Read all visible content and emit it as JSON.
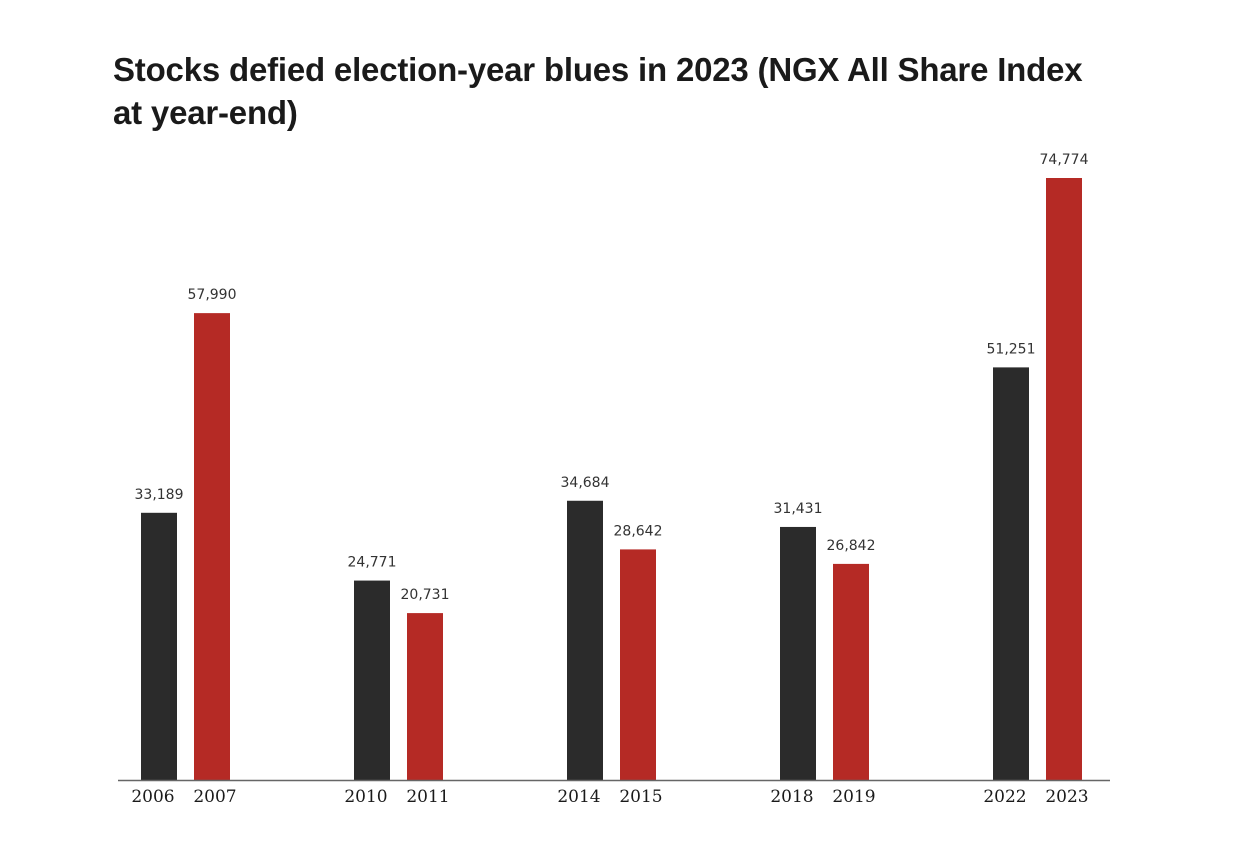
{
  "chart_data": {
    "type": "bar",
    "title": "Stocks defied election-year blues in 2023 (NGX All Share Index at year-end)",
    "xlabel": "",
    "ylabel": "",
    "ylim": [
      0,
      80000
    ],
    "grid": false,
    "legend": "none",
    "groups": [
      {
        "bars": [
          {
            "year": "2006",
            "value": 33189,
            "label": "33,189",
            "kind": "pre"
          },
          {
            "year": "2007",
            "value": 57990,
            "label": "57,990",
            "kind": "election"
          }
        ]
      },
      {
        "bars": [
          {
            "year": "2010",
            "value": 24771,
            "label": "24,771",
            "kind": "pre"
          },
          {
            "year": "2011",
            "value": 20731,
            "label": "20,731",
            "kind": "election"
          }
        ]
      },
      {
        "bars": [
          {
            "year": "2014",
            "value": 34684,
            "label": "34,684",
            "kind": "pre"
          },
          {
            "year": "2015",
            "value": 28642,
            "label": "28,642",
            "kind": "election"
          }
        ]
      },
      {
        "bars": [
          {
            "year": "2018",
            "value": 31431,
            "label": "31,431",
            "kind": "pre"
          },
          {
            "year": "2019",
            "value": 26842,
            "label": "26,842",
            "kind": "election"
          }
        ]
      },
      {
        "bars": [
          {
            "year": "2022",
            "value": 51251,
            "label": "51,251",
            "kind": "pre"
          },
          {
            "year": "2023",
            "value": 74774,
            "label": "74,774",
            "kind": "election"
          }
        ]
      }
    ],
    "colors": {
      "pre": "#2b2b2b",
      "election": "#b52a25",
      "axis": "#666666"
    }
  }
}
